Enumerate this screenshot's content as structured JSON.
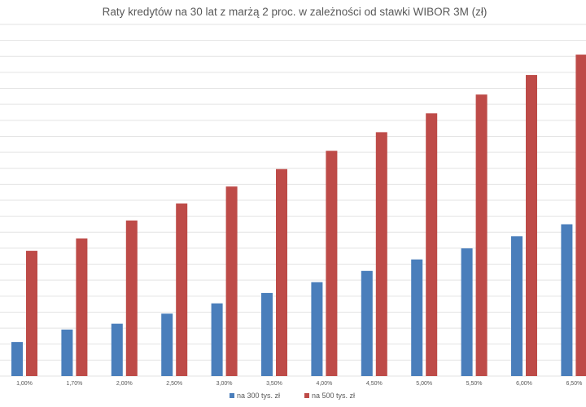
{
  "chart_data": {
    "type": "bar",
    "title": "Raty kredytów na 30 lat z marżą 2 proc. w zależności od stawki WIBOR 3M (zł)",
    "xlabel": "",
    "ylabel": "",
    "categories": [
      "1,00%",
      "1,70%",
      "2,00%",
      "2,50%",
      "3,00%",
      "3,50%",
      "4,00%",
      "4,50%",
      "5,00%",
      "5,50%",
      "6,00%",
      "6,50%"
    ],
    "series": [
      {
        "name": "na 300 tys. zł",
        "color": "#4a7ebb",
        "values": [
          1265,
          1380,
          1434,
          1527,
          1622,
          1718,
          1818,
          1922,
          2028,
          2130,
          2242,
          2353
        ]
      },
      {
        "name": "na 500 tys. zł",
        "color": "#be4b48",
        "values": [
          2108,
          2222,
          2388,
          2545,
          2702,
          2863,
          3032,
          3204,
          3378,
          3552,
          3733,
          3921
        ]
      }
    ],
    "ylim": [
      950,
      4200
    ],
    "grid": true,
    "legend": "bottom"
  }
}
